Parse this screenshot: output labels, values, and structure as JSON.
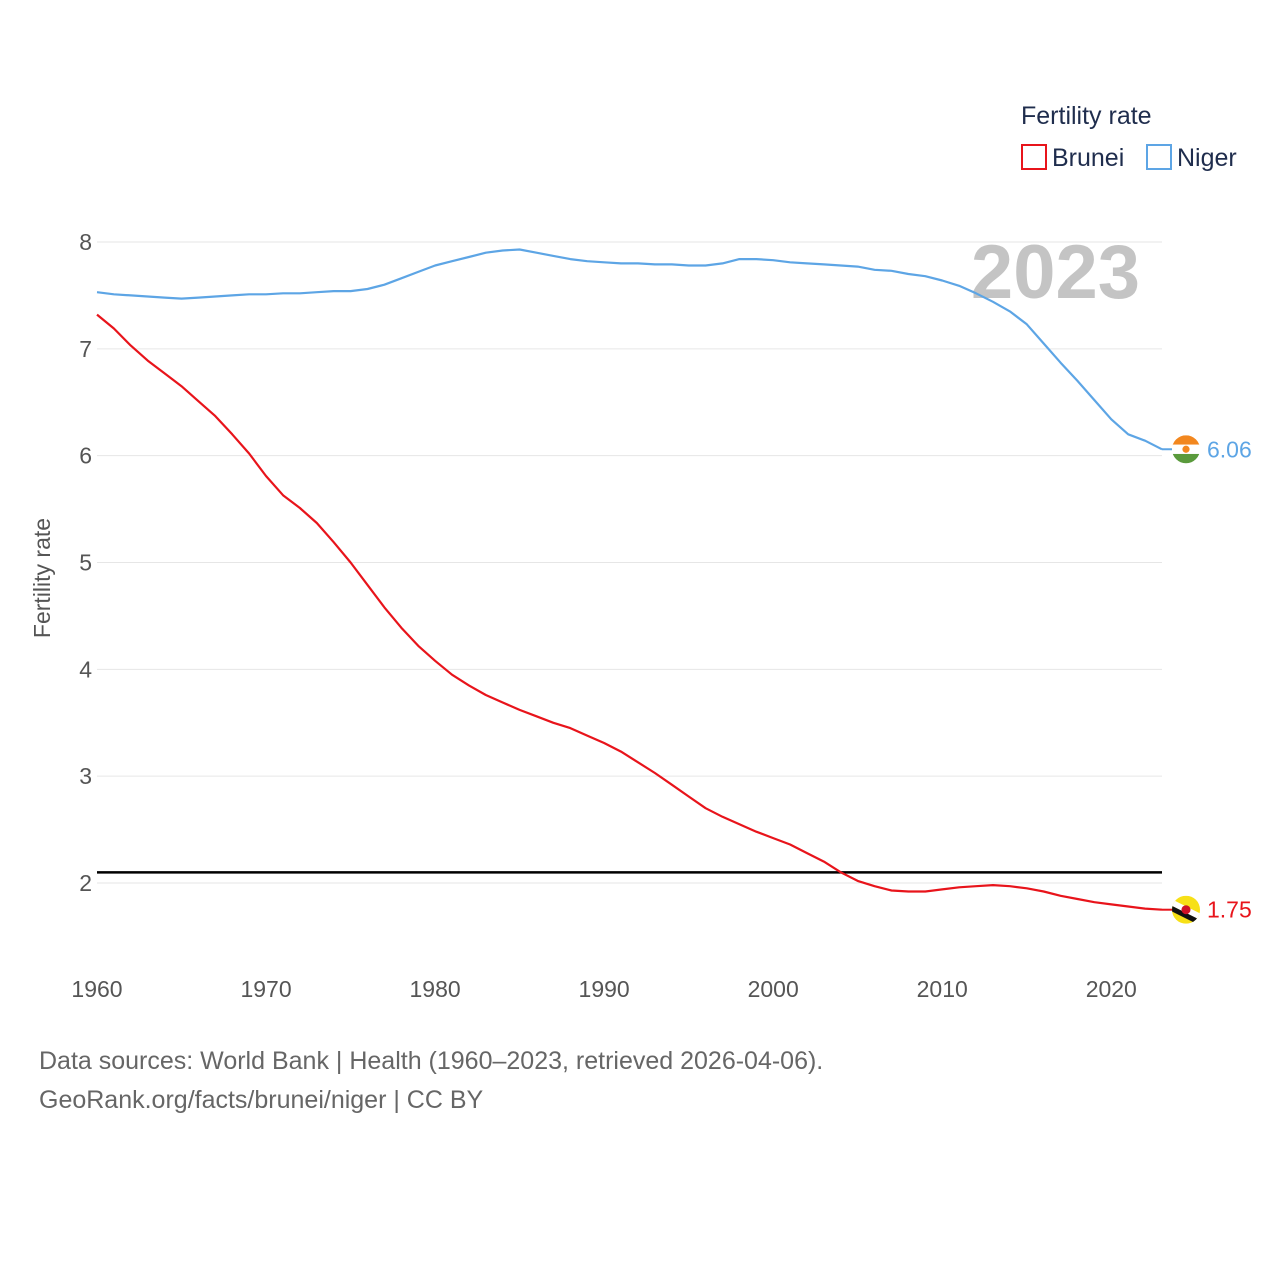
{
  "chart_data": {
    "type": "line",
    "ylabel": "Fertility rate",
    "xlim": [
      1960,
      2023
    ],
    "ylim": [
      1.4,
      8.05
    ],
    "yticks": [
      2,
      3,
      4,
      5,
      6,
      7,
      8
    ],
    "xticks": [
      1960,
      1970,
      1980,
      1990,
      2000,
      2010,
      2020
    ],
    "legend": {
      "title": "Fertility rate",
      "position": "top-right"
    },
    "watermark_year": "2023",
    "reference_line": {
      "y": 2.1,
      "color": "#000000"
    },
    "series": [
      {
        "name": "Brunei",
        "color": "#e8141b",
        "end_label": "1.75",
        "flag": "brunei-flag-icon",
        "x": [
          1960,
          1961,
          1962,
          1963,
          1964,
          1965,
          1966,
          1967,
          1968,
          1969,
          1970,
          1971,
          1972,
          1973,
          1974,
          1975,
          1976,
          1977,
          1978,
          1979,
          1980,
          1981,
          1982,
          1983,
          1984,
          1985,
          1986,
          1987,
          1988,
          1989,
          1990,
          1991,
          1992,
          1993,
          1994,
          1995,
          1996,
          1997,
          1998,
          1999,
          2000,
          2001,
          2002,
          2003,
          2004,
          2005,
          2006,
          2007,
          2008,
          2009,
          2010,
          2011,
          2012,
          2013,
          2014,
          2015,
          2016,
          2017,
          2018,
          2019,
          2020,
          2021,
          2022,
          2023
        ],
        "values": [
          7.32,
          7.19,
          7.03,
          6.89,
          6.77,
          6.65,
          6.51,
          6.37,
          6.2,
          6.02,
          5.81,
          5.63,
          5.51,
          5.37,
          5.19,
          5.0,
          4.79,
          4.58,
          4.39,
          4.22,
          4.08,
          3.95,
          3.85,
          3.76,
          3.69,
          3.62,
          3.56,
          3.5,
          3.45,
          3.38,
          3.31,
          3.23,
          3.13,
          3.03,
          2.92,
          2.81,
          2.7,
          2.62,
          2.55,
          2.48,
          2.42,
          2.36,
          2.28,
          2.2,
          2.1,
          2.02,
          1.97,
          1.93,
          1.92,
          1.92,
          1.94,
          1.96,
          1.97,
          1.98,
          1.97,
          1.95,
          1.92,
          1.88,
          1.85,
          1.82,
          1.8,
          1.78,
          1.76,
          1.75
        ]
      },
      {
        "name": "Niger",
        "color": "#5da5e5",
        "end_label": "6.06",
        "flag": "niger-flag-icon",
        "x": [
          1960,
          1961,
          1962,
          1963,
          1964,
          1965,
          1966,
          1967,
          1968,
          1969,
          1970,
          1971,
          1972,
          1973,
          1974,
          1975,
          1976,
          1977,
          1978,
          1979,
          1980,
          1981,
          1982,
          1983,
          1984,
          1985,
          1986,
          1987,
          1988,
          1989,
          1990,
          1991,
          1992,
          1993,
          1994,
          1995,
          1996,
          1997,
          1998,
          1999,
          2000,
          2001,
          2002,
          2003,
          2004,
          2005,
          2006,
          2007,
          2008,
          2009,
          2010,
          2011,
          2012,
          2013,
          2014,
          2015,
          2016,
          2017,
          2018,
          2019,
          2020,
          2021,
          2022,
          2023
        ],
        "values": [
          7.53,
          7.51,
          7.5,
          7.49,
          7.48,
          7.47,
          7.48,
          7.49,
          7.5,
          7.51,
          7.51,
          7.52,
          7.52,
          7.53,
          7.54,
          7.54,
          7.56,
          7.6,
          7.66,
          7.72,
          7.78,
          7.82,
          7.86,
          7.9,
          7.92,
          7.93,
          7.9,
          7.87,
          7.84,
          7.82,
          7.81,
          7.8,
          7.8,
          7.79,
          7.79,
          7.78,
          7.78,
          7.8,
          7.84,
          7.84,
          7.83,
          7.81,
          7.8,
          7.79,
          7.78,
          7.77,
          7.74,
          7.73,
          7.7,
          7.68,
          7.64,
          7.59,
          7.52,
          7.44,
          7.35,
          7.23,
          7.05,
          6.87,
          6.7,
          6.52,
          6.34,
          6.2,
          6.14,
          6.06
        ]
      }
    ]
  },
  "footer": {
    "line1": "Data sources: World Bank | Health (1960–2023, retrieved 2026-04-06).",
    "line2": "GeoRank.org/facts/brunei/niger | CC BY"
  }
}
